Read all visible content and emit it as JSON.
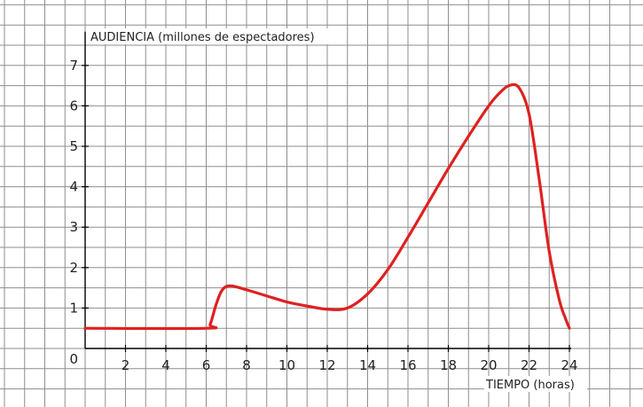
{
  "chart_data": {
    "type": "line",
    "title": "",
    "ylabel": "AUDIENCIA (millones de espectadores)",
    "xlabel": "TIEMPO (horas)",
    "xlim": [
      0,
      24
    ],
    "ylim": [
      0,
      7
    ],
    "x_ticks": [
      2,
      4,
      6,
      8,
      10,
      12,
      14,
      16,
      18,
      20,
      22,
      24
    ],
    "y_ticks": [
      1,
      2,
      3,
      4,
      5,
      6,
      7
    ],
    "origin_label": "0",
    "grid": true,
    "line_color": "#e02020",
    "series": [
      {
        "x": [
          0,
          6,
          6.2,
          6.5,
          6.8,
          7.2,
          8,
          9,
          10,
          11,
          12,
          13,
          14,
          15,
          16,
          17,
          18,
          19,
          20,
          20.5,
          21,
          21.5,
          22,
          22.5,
          23,
          23.5,
          23.8,
          24
        ],
        "y": [
          0.5,
          0.5,
          0.6,
          1.1,
          1.45,
          1.55,
          1.45,
          1.3,
          1.15,
          1.05,
          0.97,
          1.0,
          1.35,
          1.95,
          2.75,
          3.6,
          4.45,
          5.25,
          6.0,
          6.3,
          6.5,
          6.45,
          5.8,
          4.2,
          2.4,
          1.2,
          0.75,
          0.5
        ]
      }
    ]
  }
}
